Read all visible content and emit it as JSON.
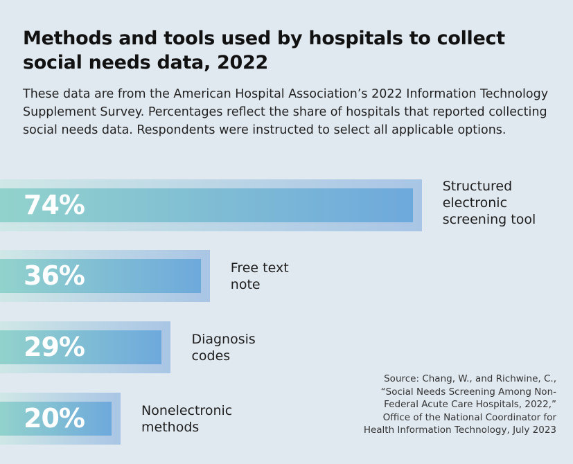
{
  "title": "Methods and tools used by hospitals to collect social needs data, 2022",
  "subtitle": "These data are from the American Hospital Association’s 2022 Information Technology Supplement Survey. Percentages reflect the share of hospitals that reported collecting social needs data. Respondents were instructed to select all applicable options.",
  "source": "Source: Chang, W., and Richwine, C., “Social Needs Screening Among Non-Federal Acute Care Hospitals, 2022,” Office of the National Coordinator for Health Information Technology, July 2023",
  "chart_data": {
    "type": "bar",
    "orientation": "horizontal",
    "title": "Methods and tools used by hospitals to collect social needs data, 2022",
    "categories": [
      "Structured electronic screening tool",
      "Free text note",
      "Diagnosis codes",
      "Nonelectronic methods"
    ],
    "values": [
      74,
      36,
      29,
      20
    ],
    "value_labels": [
      "74%",
      "36%",
      "29%",
      "20%"
    ],
    "unit": "%",
    "xlim": [
      0,
      100
    ],
    "grid": false,
    "colors": {
      "bar_start": "#92d2cc",
      "bar_end": "#6ea9dc",
      "frame_start": "#cfe7e6",
      "frame_end": "#a9c5e5",
      "background": "#e1e9f0"
    }
  }
}
